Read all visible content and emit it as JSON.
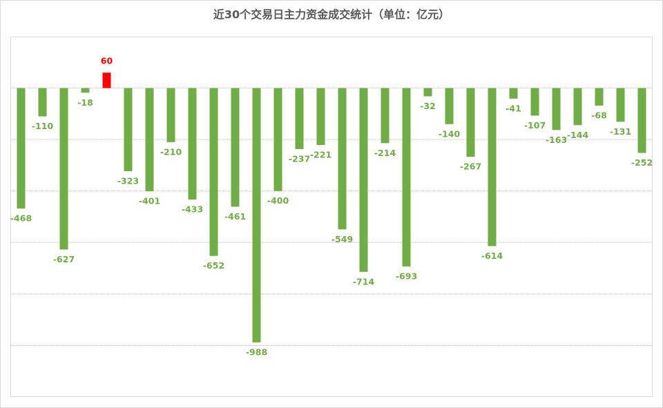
{
  "chart_data": {
    "type": "bar",
    "title": "近30个交易日主力资金成交统计（单位：亿元）",
    "values": [
      -468,
      -110,
      -627,
      -18,
      60,
      -323,
      -401,
      -210,
      -433,
      -652,
      -461,
      -988,
      -400,
      -237,
      -221,
      -549,
      -714,
      -214,
      -693,
      -32,
      -140,
      -267,
      -614,
      -41,
      -107,
      -163,
      -144,
      -68,
      -131,
      -252
    ],
    "color": "#70ad47",
    "positive_color": "#ff0000",
    "ylim": [
      -1200,
      200
    ],
    "yticks": [
      -1000,
      -800,
      -600,
      -400,
      -200,
      0
    ],
    "grid": true
  }
}
